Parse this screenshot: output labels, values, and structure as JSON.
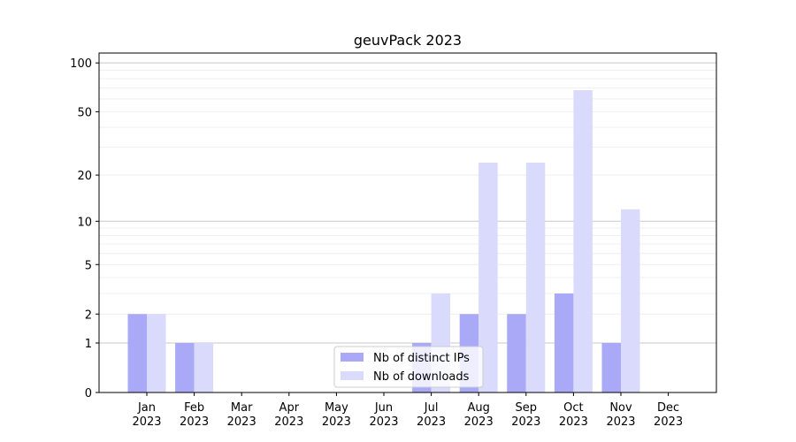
{
  "chart_data": {
    "type": "bar",
    "title": "geuvPack 2023",
    "categories": [
      [
        "Jan",
        "2023"
      ],
      [
        "Feb",
        "2023"
      ],
      [
        "Mar",
        "2023"
      ],
      [
        "Apr",
        "2023"
      ],
      [
        "May",
        "2023"
      ],
      [
        "Jun",
        "2023"
      ],
      [
        "Jul",
        "2023"
      ],
      [
        "Aug",
        "2023"
      ],
      [
        "Sep",
        "2023"
      ],
      [
        "Oct",
        "2023"
      ],
      [
        "Nov",
        "2023"
      ],
      [
        "Dec",
        "2023"
      ]
    ],
    "series": [
      {
        "name": "Nb of distinct IPs",
        "color": "#a9a9f7",
        "values": [
          2,
          1,
          0,
          0,
          0,
          0,
          1,
          2,
          2,
          3,
          1,
          0
        ]
      },
      {
        "name": "Nb of downloads",
        "color": "#dadafc",
        "values": [
          2,
          1,
          0,
          0,
          0,
          0,
          3,
          24,
          24,
          68,
          12,
          0
        ]
      }
    ],
    "y_scale": "log1p",
    "ylim": [
      0,
      115
    ],
    "yticks": [
      0,
      1,
      2,
      5,
      10,
      20,
      50,
      100
    ],
    "major_grid": [
      1,
      10,
      100
    ],
    "minor_grid": [
      2,
      3,
      4,
      5,
      6,
      7,
      8,
      9,
      20,
      30,
      40,
      50,
      60,
      70,
      80,
      90
    ],
    "legend": "lower center"
  }
}
